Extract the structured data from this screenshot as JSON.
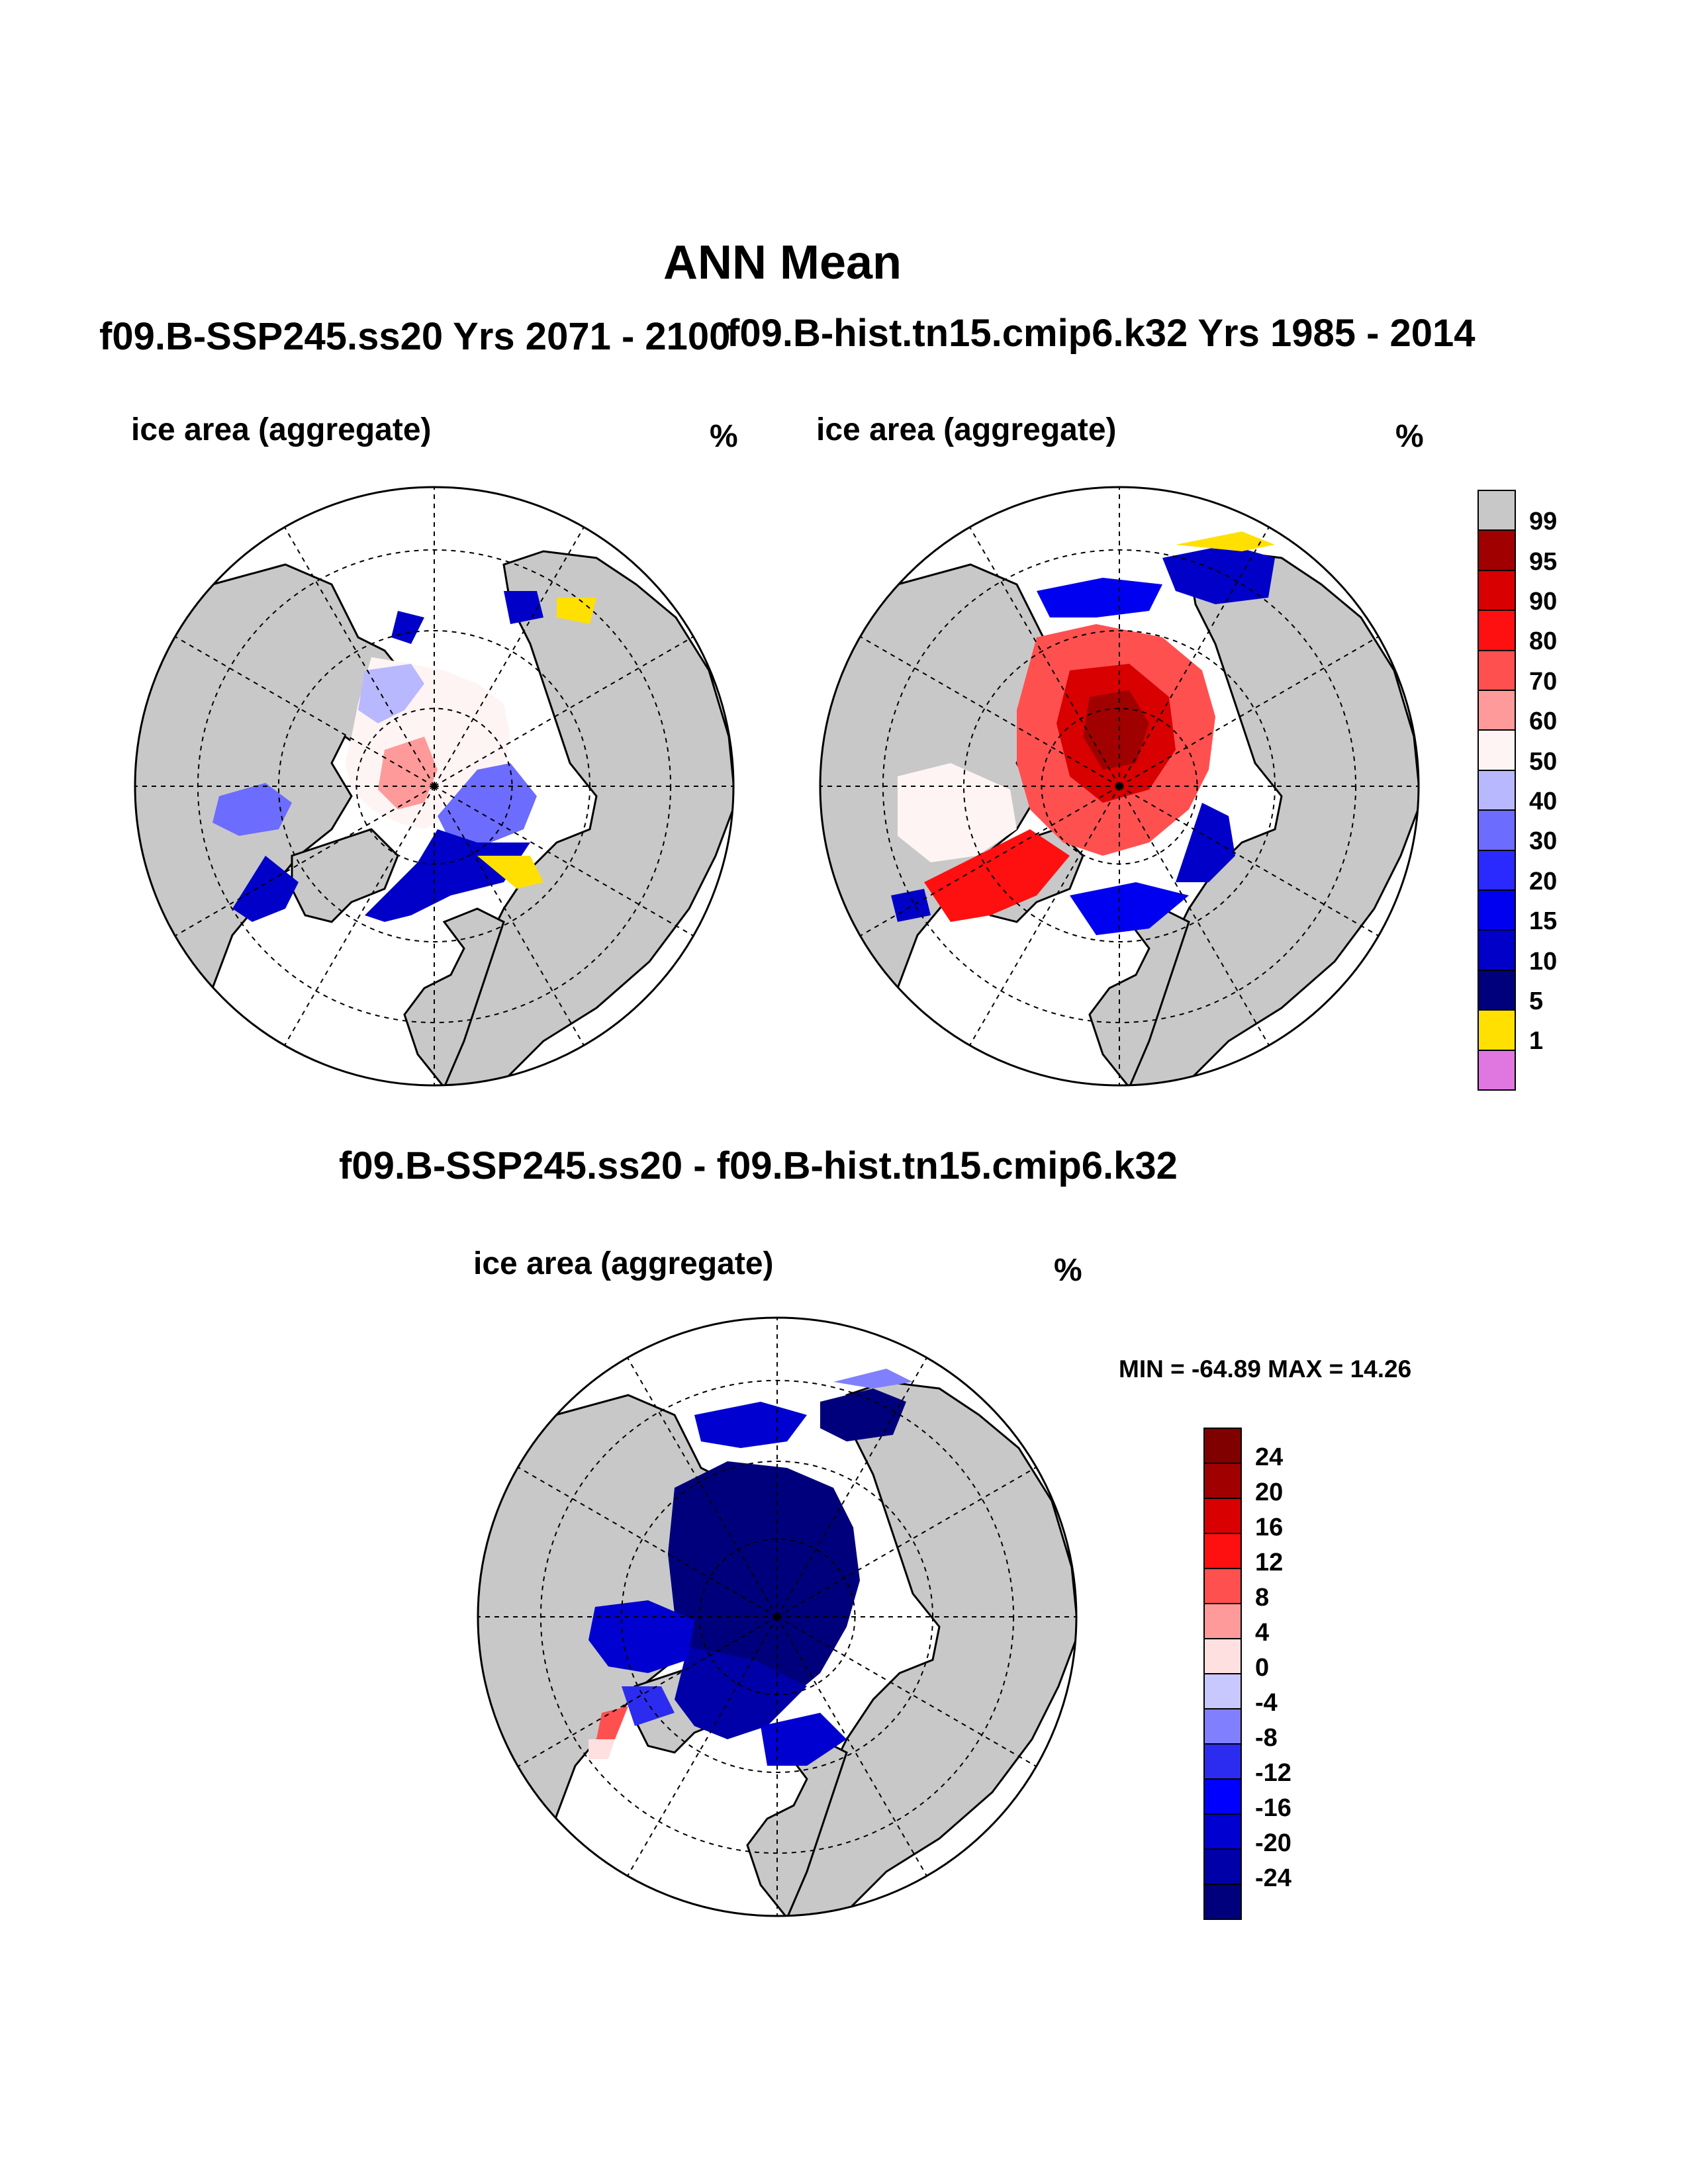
{
  "figure": {
    "title": "ANN Mean",
    "colors": {
      "land": "#c8c8c8",
      "ocean": "#ffffff",
      "coast": "#000000",
      "grid": "#000000"
    }
  },
  "panels": {
    "top_left": {
      "case_title": "f09.B-SSP245.ss20  Yrs 2071 - 2100",
      "subtitle": "ice area  (aggregate)",
      "units": "%"
    },
    "top_right": {
      "case_title": "f09.B-hist.tn15.cmip6.k32  Yrs 1985 - 2014",
      "subtitle": "ice area  (aggregate)",
      "units": "%"
    },
    "bottom": {
      "case_title": "f09.B-SSP245.ss20 - f09.B-hist.tn15.cmip6.k32",
      "subtitle": "ice area  (aggregate)",
      "units": "%",
      "stats": "MIN = -64.89 MAX =  14.26"
    }
  },
  "chart_data": [
    {
      "type": "heatmap",
      "projection": "north polar stereographic",
      "title": "f09.B-SSP245.ss20  Yrs 2071 - 2100",
      "variable": "ice area  (aggregate)",
      "units": "%",
      "colorbar": {
        "levels": [
          1,
          5,
          10,
          15,
          20,
          30,
          40,
          50,
          60,
          70,
          80,
          90,
          95,
          99
        ],
        "colors": [
          "#e076e0",
          "#ffe000",
          "#00007c",
          "#0000c8",
          "#0000f0",
          "#2a2aff",
          "#6c6cff",
          "#b8b8ff",
          "#fff4f4",
          "#ff9a9a",
          "#ff5050",
          "#ff1010",
          "#d80000",
          "#a00000",
          "#c8c8c8"
        ]
      },
      "description_values": {
        "central_arctic_range": [
          50,
          70
        ],
        "marginal_seas_range": [
          1,
          40
        ]
      }
    },
    {
      "type": "heatmap",
      "projection": "north polar stereographic",
      "title": "f09.B-hist.tn15.cmip6.k32  Yrs 1985 - 2014",
      "variable": "ice area  (aggregate)",
      "units": "%",
      "colorbar": {
        "levels": [
          1,
          5,
          10,
          15,
          20,
          30,
          40,
          50,
          60,
          70,
          80,
          90,
          95,
          99
        ],
        "colors": [
          "#e076e0",
          "#ffe000",
          "#00007c",
          "#0000c8",
          "#0000f0",
          "#2a2aff",
          "#6c6cff",
          "#b8b8ff",
          "#fff4f4",
          "#ff9a9a",
          "#ff5050",
          "#ff1010",
          "#d80000",
          "#a00000",
          "#c8c8c8"
        ]
      },
      "description_values": {
        "central_arctic_range": [
          90,
          99
        ],
        "marginal_seas_range": [
          1,
          80
        ]
      }
    },
    {
      "type": "heatmap",
      "projection": "north polar stereographic",
      "title": "f09.B-SSP245.ss20 - f09.B-hist.tn15.cmip6.k32",
      "variable": "ice area  (aggregate)",
      "units": "%",
      "min": -64.89,
      "max": 14.26,
      "colorbar": {
        "levels": [
          -24,
          -20,
          -16,
          -12,
          -8,
          -4,
          0,
          4,
          8,
          12,
          16,
          20,
          24
        ],
        "colors": [
          "#00007c",
          "#0000a8",
          "#0000d0",
          "#0000ff",
          "#2c2cf0",
          "#8080ff",
          "#c8c8ff",
          "#ffe0e0",
          "#ff9a9a",
          "#ff5050",
          "#ff1010",
          "#d80000",
          "#a00000",
          "#800000"
        ]
      }
    }
  ]
}
